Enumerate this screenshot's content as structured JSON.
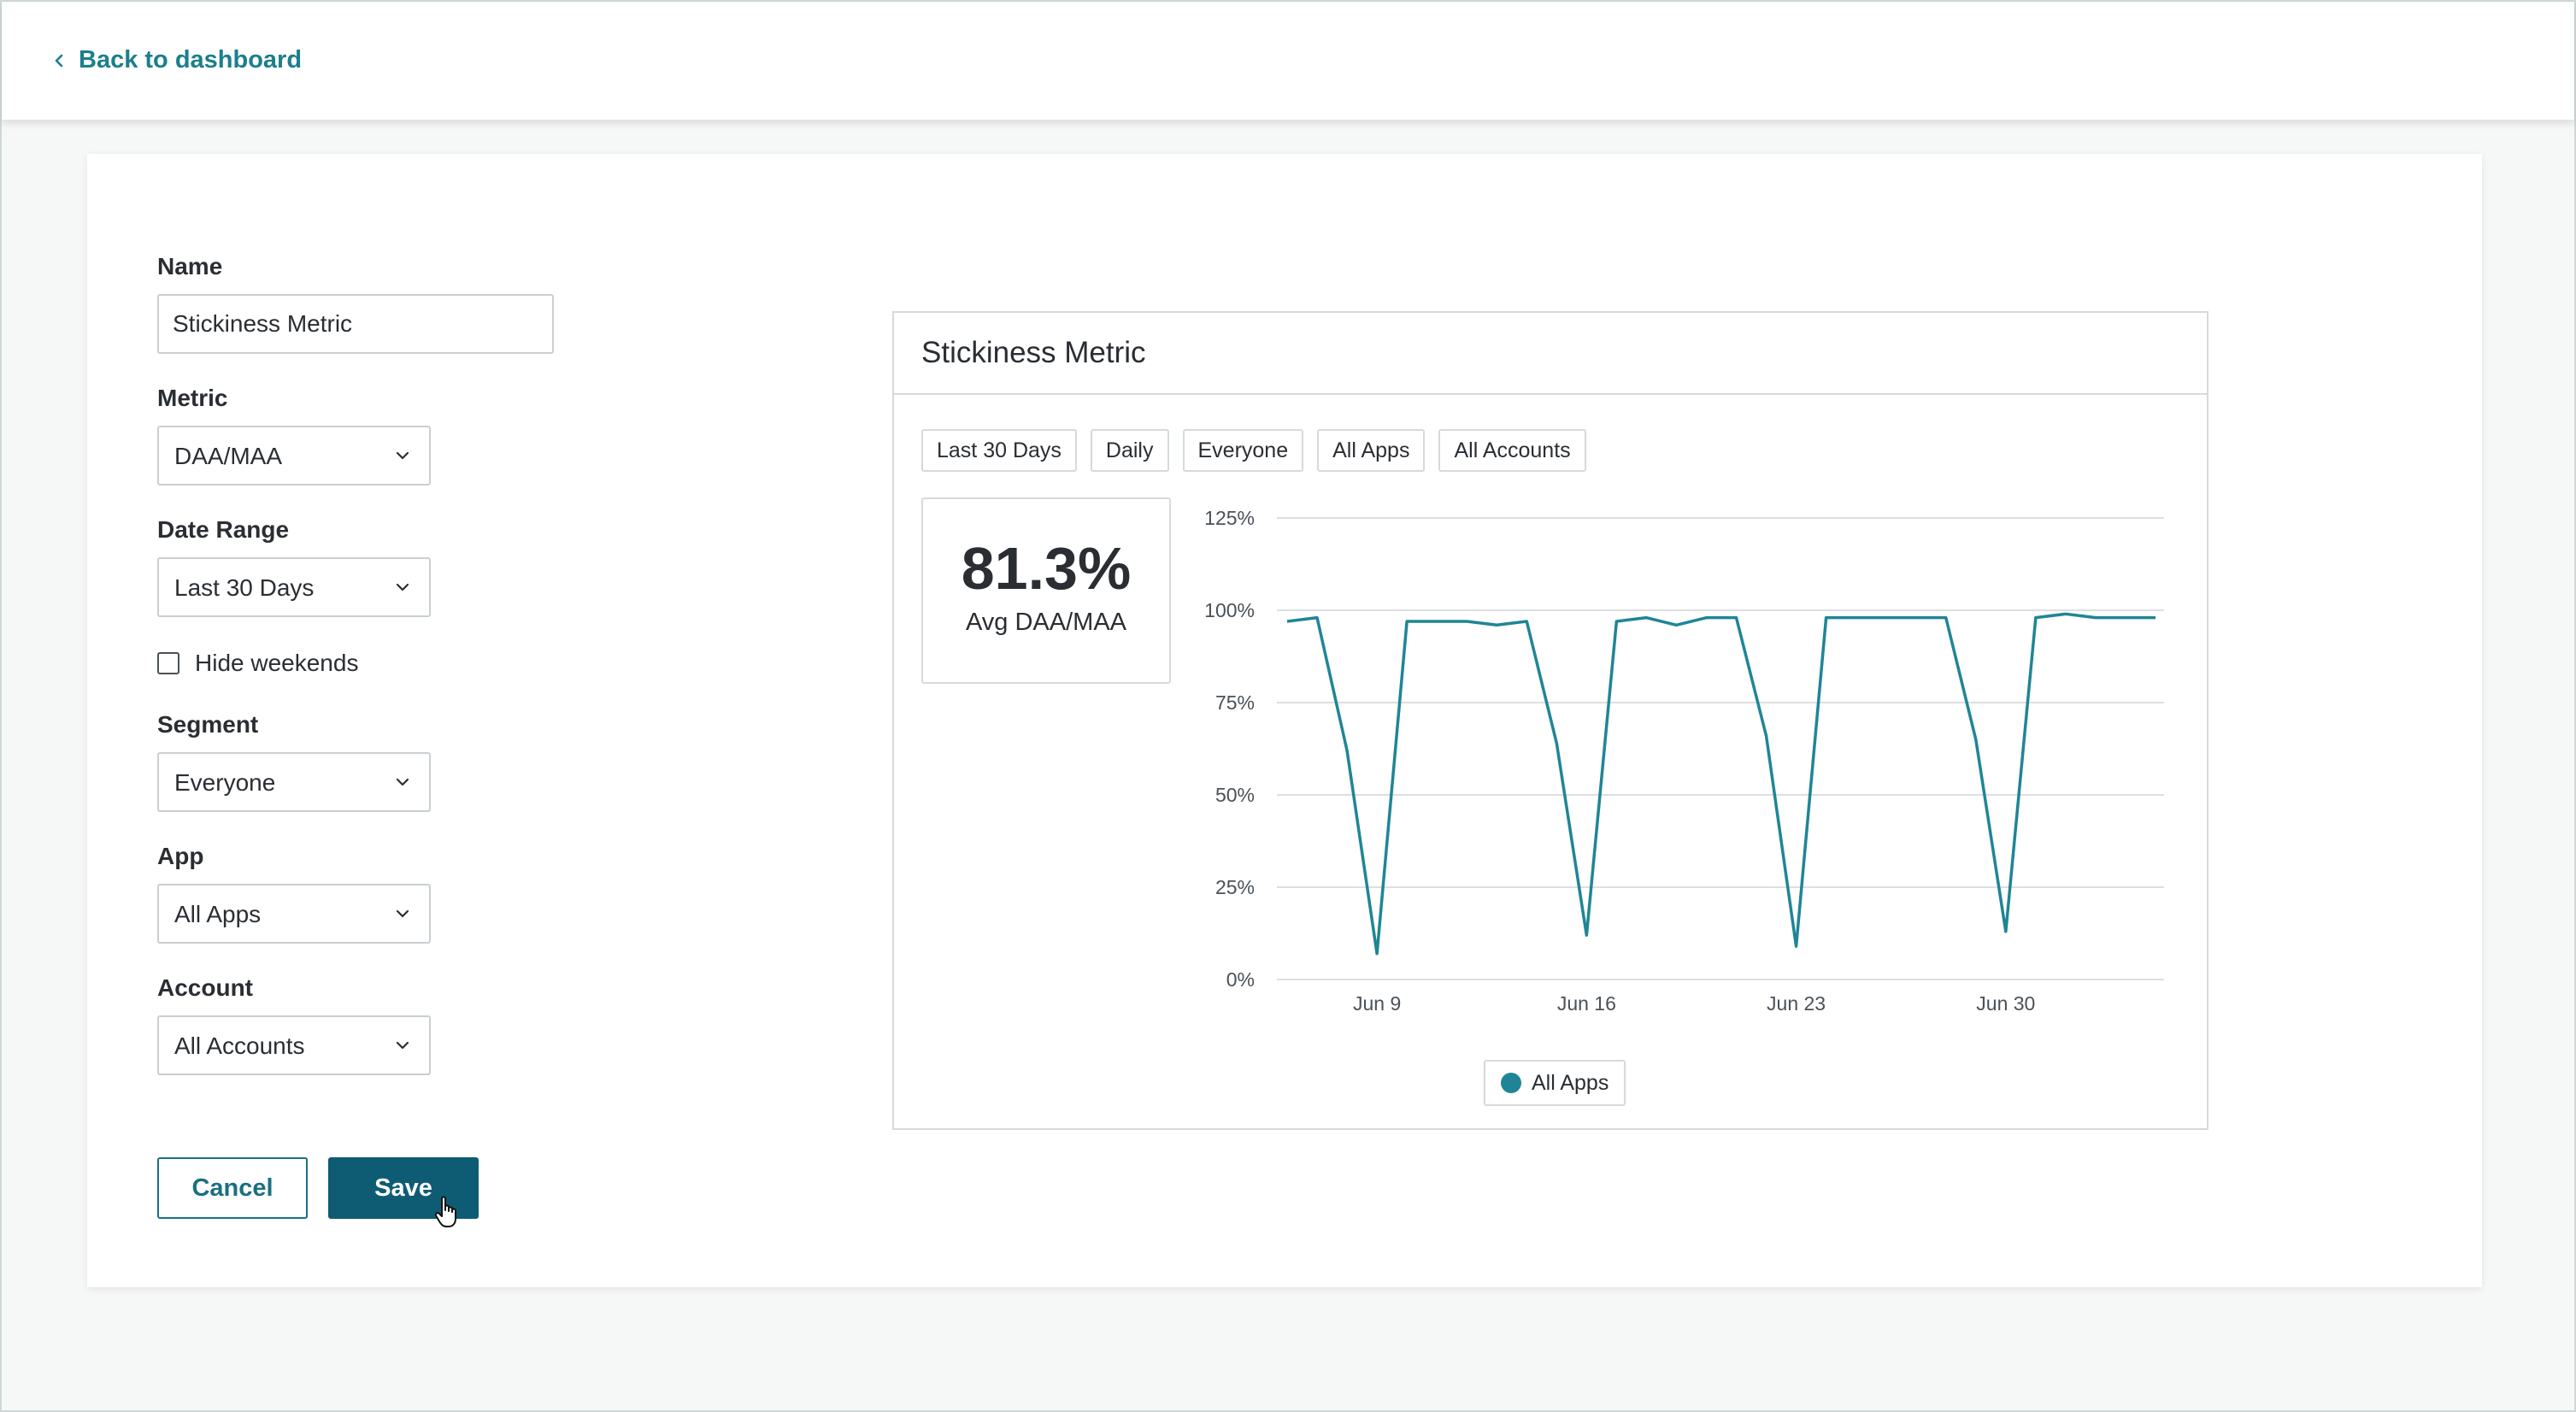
{
  "topbar": {
    "back_label": "Back to dashboard"
  },
  "form": {
    "name": {
      "label": "Name",
      "value": "Stickiness Metric"
    },
    "metric": {
      "label": "Metric",
      "value": "DAA/MAA"
    },
    "date_range": {
      "label": "Date Range",
      "value": "Last 30 Days"
    },
    "hide_weekends": {
      "label": "Hide weekends",
      "checked": false
    },
    "segment": {
      "label": "Segment",
      "value": "Everyone"
    },
    "app": {
      "label": "App",
      "value": "All Apps"
    },
    "account": {
      "label": "Account",
      "value": "All Accounts"
    },
    "cancel_label": "Cancel",
    "save_label": "Save"
  },
  "preview": {
    "title": "Stickiness Metric",
    "chips": [
      "Last 30 Days",
      "Daily",
      "Everyone",
      "All Apps",
      "All Accounts"
    ],
    "stat_value": "81.3%",
    "stat_label": "Avg DAA/MAA"
  },
  "colors": {
    "accent": "#1b7f8c",
    "series": "#1f8596",
    "primary_button": "#0e5c74"
  },
  "chart_data": {
    "type": "line",
    "ylim": [
      0,
      125
    ],
    "yticks": [
      "0%",
      "25%",
      "50%",
      "75%",
      "100%",
      "125%"
    ],
    "ytick_values": [
      0,
      25,
      50,
      75,
      100,
      125
    ],
    "x": [
      "Jun 6",
      "Jun 7",
      "Jun 8",
      "Jun 9",
      "Jun 10",
      "Jun 11",
      "Jun 12",
      "Jun 13",
      "Jun 14",
      "Jun 15",
      "Jun 16",
      "Jun 17",
      "Jun 18",
      "Jun 19",
      "Jun 20",
      "Jun 21",
      "Jun 22",
      "Jun 23",
      "Jun 24",
      "Jun 25",
      "Jun 26",
      "Jun 27",
      "Jun 28",
      "Jun 29",
      "Jun 30",
      "Jul 1",
      "Jul 2",
      "Jul 3",
      "Jul 4",
      "Jul 5"
    ],
    "xtick_labels": [
      "Jun 9",
      "Jun 16",
      "Jun 23",
      "Jun 30"
    ],
    "series": [
      {
        "name": "All Apps",
        "values": [
          97,
          98,
          62,
          7,
          97,
          97,
          97,
          96,
          97,
          64,
          12,
          97,
          98,
          96,
          98,
          98,
          66,
          9,
          98,
          98,
          98,
          98,
          98,
          65,
          13,
          98,
          99,
          98,
          98,
          98
        ]
      }
    ],
    "legend": "bottom-center",
    "grid": true
  }
}
